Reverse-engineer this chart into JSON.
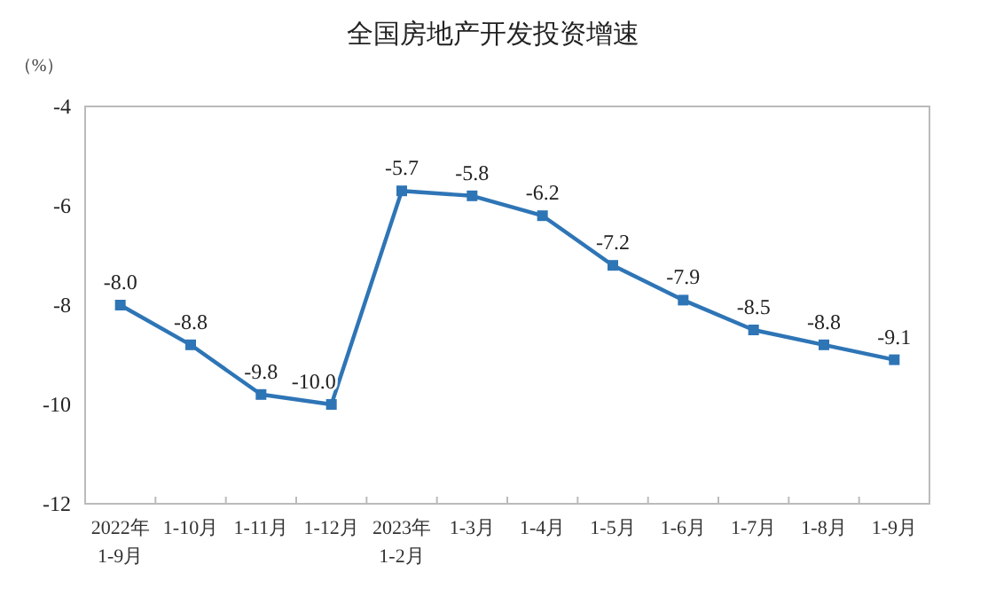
{
  "chart_data": {
    "type": "line",
    "title": "全国房地产开发投资增速",
    "ylabel": "（%）",
    "categories": [
      "2022年\n1-9月",
      "1-10月",
      "1-11月",
      "1-12月",
      "2023年\n1-2月",
      "1-3月",
      "1-4月",
      "1-5月",
      "1-6月",
      "1-7月",
      "1-8月",
      "1-9月"
    ],
    "series": [
      {
        "color": "#2e75b6",
        "values": [
          -8.0,
          -8.8,
          -9.8,
          -10.0,
          -5.7,
          -5.8,
          -6.2,
          -7.2,
          -7.9,
          -8.5,
          -8.8,
          -9.1
        ],
        "value_labels": [
          "-8.0",
          "-8.8",
          "-9.8",
          "-10.0",
          "-5.7",
          "-5.8",
          "-6.2",
          "-7.2",
          "-7.9",
          "-8.5",
          "-8.8",
          "-9.1"
        ]
      }
    ],
    "ylim": [
      -12,
      -4
    ],
    "yticks": [
      -12,
      -10,
      -8,
      -6,
      -4
    ],
    "marker": "square",
    "line_style": "solid",
    "grid": false
  }
}
